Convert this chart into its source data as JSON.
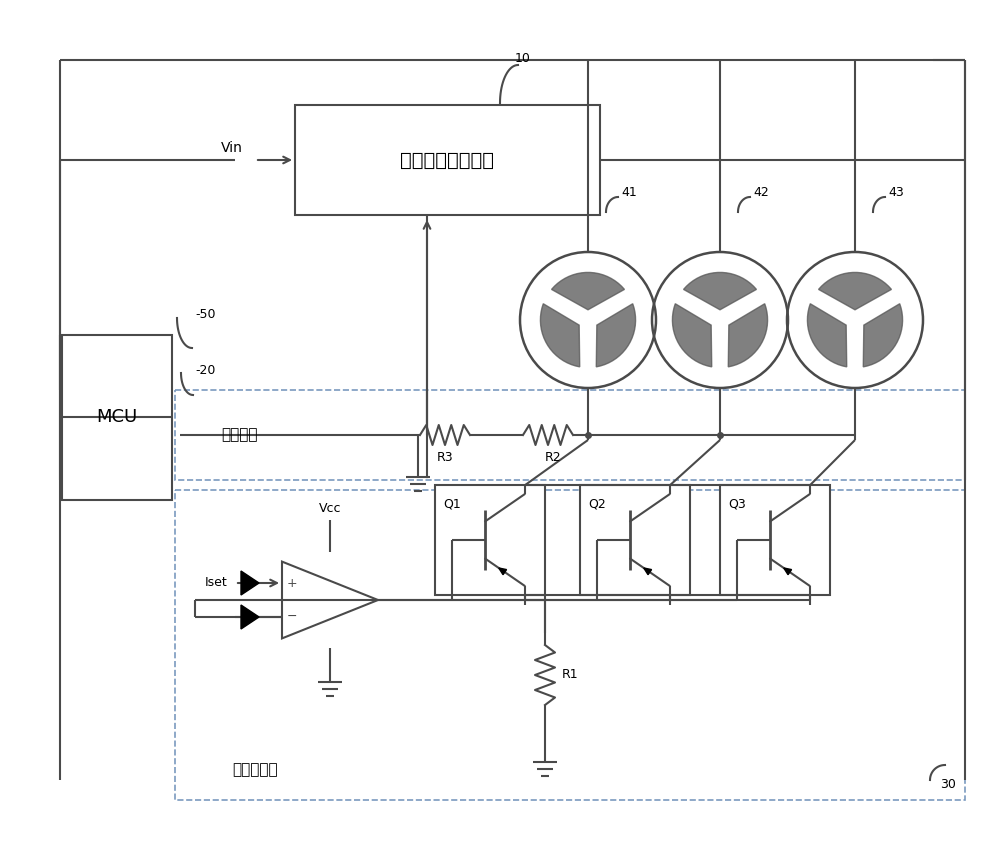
{
  "bg_color": "#ffffff",
  "line_color": "#4a4a4a",
  "dashed_color": "#7a9abf",
  "power_box_label": "电源开关控刻电路",
  "sample_box_label": "采样电路",
  "const_box_label": "恒流镜电路",
  "mcu_label": "MCU",
  "label_10": "10",
  "label_20": "-20",
  "label_30": "30",
  "label_50": "-50",
  "vin_label": "Vin",
  "vcc_label": "Vcc",
  "iset_label": "Iset",
  "r1_label": "R1",
  "r2_label": "R2",
  "r3_label": "R3",
  "q1_label": "Q1",
  "q2_label": "Q2",
  "q3_label": "Q3",
  "fan_labels": [
    "41",
    "42",
    "43"
  ]
}
